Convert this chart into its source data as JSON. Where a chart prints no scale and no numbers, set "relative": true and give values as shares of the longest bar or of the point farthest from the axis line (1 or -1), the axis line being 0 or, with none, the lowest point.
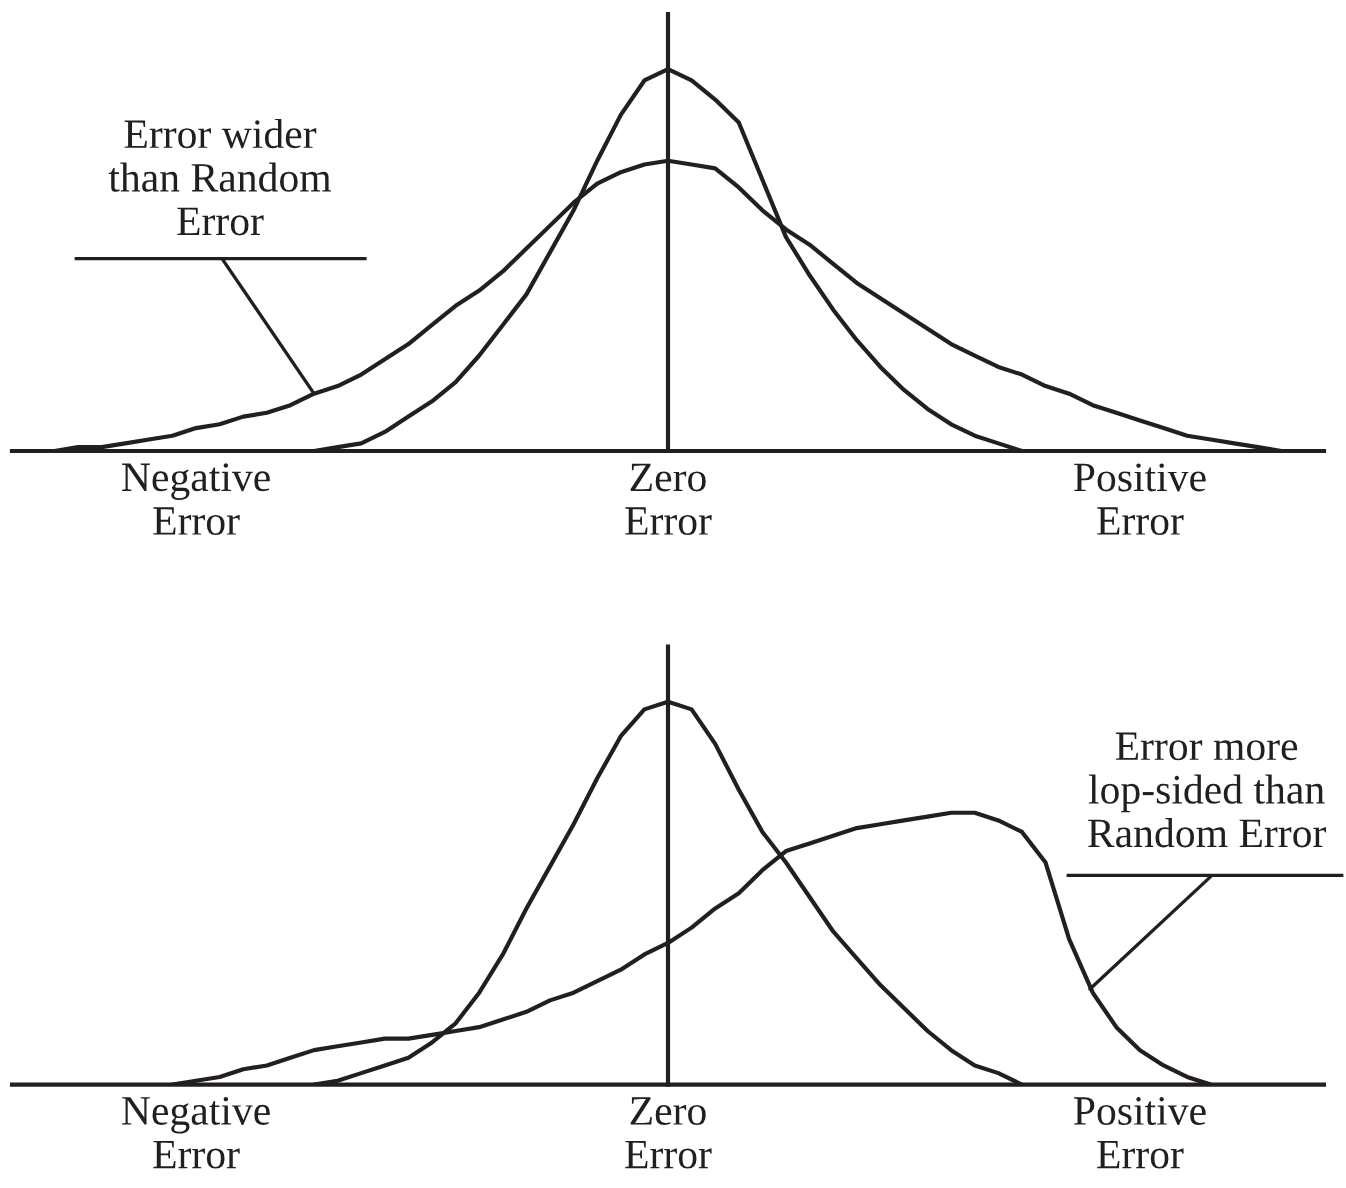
{
  "chart_data": [
    {
      "type": "line",
      "relative": true,
      "categories": [
        null,
        null,
        null,
        null,
        null,
        null,
        "Negative\nError",
        null,
        null,
        null,
        null,
        null,
        null,
        null,
        null,
        null,
        null,
        null,
        null,
        null,
        null,
        null,
        null,
        null,
        null,
        null,
        "Zero\nError",
        null,
        null,
        null,
        null,
        null,
        null,
        null,
        null,
        null,
        null,
        null,
        null,
        null,
        null,
        null,
        null,
        null,
        null,
        null,
        "Positive\nError",
        null,
        null,
        null,
        null,
        null,
        null
      ],
      "series": [
        {
          "color": "#231f20",
          "values": [
            null,
            null,
            null,
            null,
            null,
            null,
            null,
            null,
            null,
            null,
            null,
            0,
            0.01,
            0.02,
            0.05,
            0.09,
            0.13,
            0.18,
            0.25,
            0.33,
            0.41,
            0.52,
            0.63,
            0.76,
            0.88,
            0.97,
            1,
            0.97,
            0.92,
            0.86,
            0.71,
            0.56,
            0.46,
            0.37,
            0.29,
            0.22,
            0.16,
            0.11,
            0.07,
            0.04,
            0.02,
            0,
            null,
            null,
            null,
            null,
            null,
            null,
            null,
            null,
            null,
            null,
            null
          ]
        },
        {
          "color": "#231f20",
          "values": [
            0,
            0.01,
            0.01,
            0.02,
            0.03,
            0.04,
            0.06,
            0.07,
            0.09,
            0.1,
            0.12,
            0.15,
            0.17,
            0.2,
            0.24,
            0.28,
            0.33,
            0.38,
            0.42,
            0.47,
            0.53,
            0.59,
            0.65,
            0.7,
            0.73,
            0.75,
            0.76,
            0.75,
            0.74,
            0.69,
            0.63,
            0.58,
            0.54,
            0.49,
            0.44,
            0.4,
            0.36,
            0.32,
            0.28,
            0.25,
            0.22,
            0.2,
            0.17,
            0.15,
            0.12,
            0.1,
            0.08,
            0.06,
            0.04,
            0.03,
            0.02,
            0.01,
            0
          ]
        }
      ],
      "annotations": [
        "Error wider\nthan Random\nError"
      ]
    },
    {
      "type": "line",
      "relative": true,
      "categories": [
        null,
        null,
        null,
        null,
        null,
        null,
        "Negative\nError",
        null,
        null,
        null,
        null,
        null,
        null,
        null,
        null,
        null,
        null,
        null,
        null,
        null,
        null,
        null,
        null,
        null,
        null,
        null,
        "Zero\nError",
        null,
        null,
        null,
        null,
        null,
        null,
        null,
        null,
        null,
        null,
        null,
        null,
        null,
        null,
        null,
        null,
        null,
        null,
        null,
        "Positive\nError",
        null,
        null,
        null,
        null,
        null,
        null
      ],
      "series": [
        {
          "color": "#231f20",
          "values": [
            null,
            null,
            null,
            null,
            null,
            null,
            null,
            null,
            null,
            null,
            null,
            0,
            0.01,
            0.03,
            0.05,
            0.07,
            0.11,
            0.16,
            0.24,
            0.34,
            0.46,
            0.57,
            0.68,
            0.8,
            0.91,
            0.98,
            1,
            0.98,
            0.89,
            0.77,
            0.66,
            0.58,
            0.49,
            0.4,
            0.33,
            0.26,
            0.2,
            0.14,
            0.09,
            0.05,
            0.03,
            0,
            null,
            null,
            null,
            null,
            null,
            null,
            null,
            null,
            null,
            null,
            null
          ]
        },
        {
          "color": "#231f20",
          "values": [
            null,
            null,
            null,
            null,
            null,
            0,
            0.01,
            0.02,
            0.04,
            0.05,
            0.07,
            0.09,
            0.1,
            0.11,
            0.12,
            0.12,
            0.13,
            0.14,
            0.15,
            0.17,
            0.19,
            0.22,
            0.24,
            0.27,
            0.3,
            0.34,
            0.37,
            0.41,
            0.46,
            0.5,
            0.56,
            0.61,
            0.63,
            0.65,
            0.67,
            0.68,
            0.69,
            0.7,
            0.71,
            0.71,
            0.69,
            0.66,
            0.58,
            0.38,
            0.24,
            0.15,
            0.09,
            0.05,
            0.02,
            0,
            null,
            null,
            null
          ]
        }
      ],
      "annotations": [
        "Error more\nlop-sided than\nRandom Error"
      ]
    }
  ]
}
